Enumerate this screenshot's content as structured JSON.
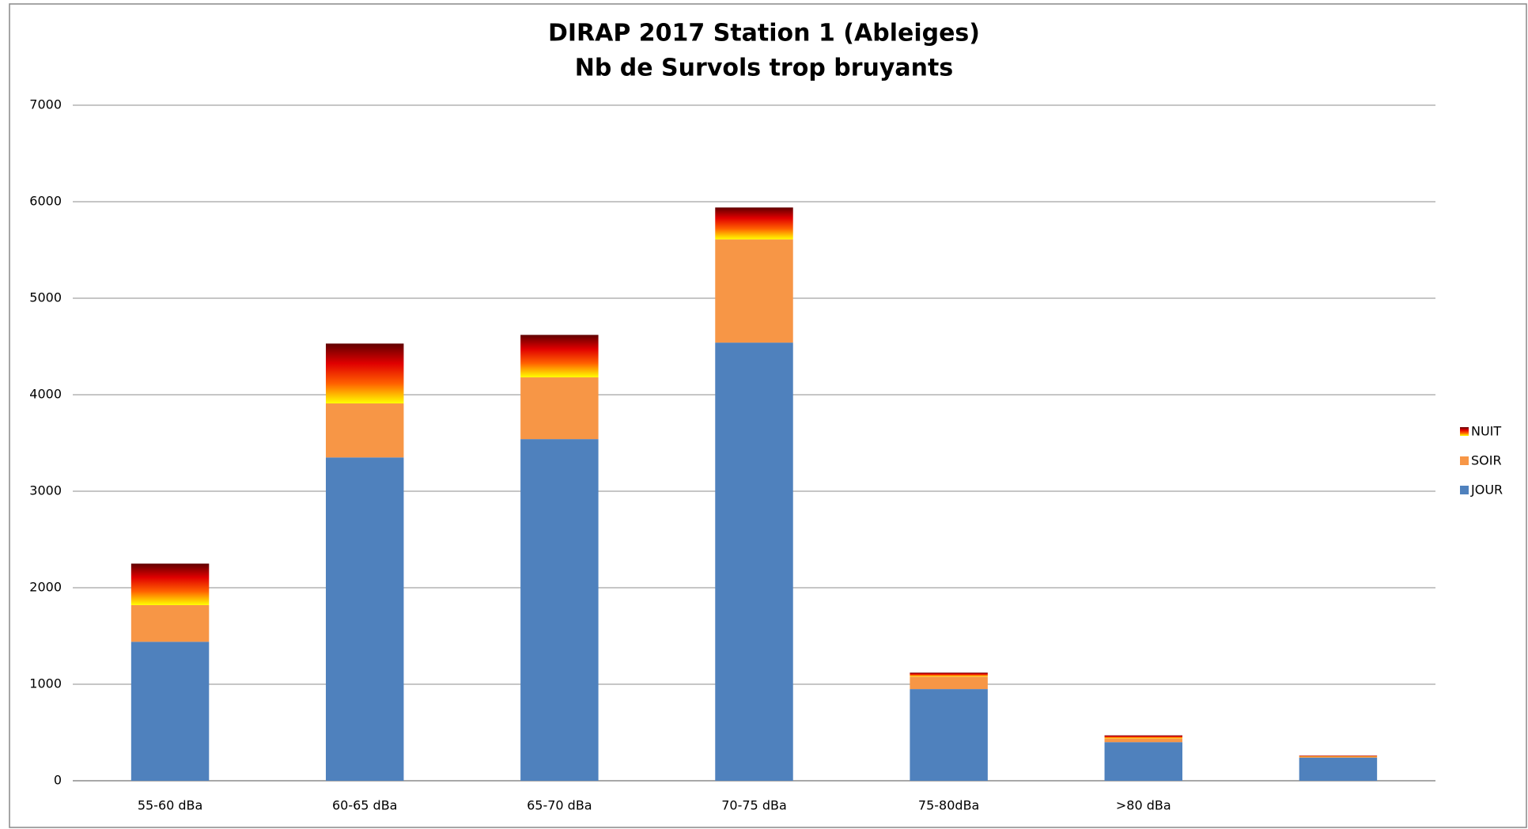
{
  "chart_data": {
    "type": "stacked_bar",
    "title": "DIRAP 2017 Station 1 (Ableiges)",
    "subtitle": "Nb de Survols trop bruyants",
    "categories": [
      "55-60 dBa",
      "60-65 dBa",
      "65-70 dBa",
      "70-75 dBa",
      "75-80dBa",
      ">80 dBa",
      null
    ],
    "series": [
      {
        "name": "JOUR",
        "color": "#4f81bd",
        "values": [
          1440,
          3350,
          3540,
          4540,
          950,
          400,
          240
        ]
      },
      {
        "name": "SOIR",
        "color": "#f79646",
        "values": [
          380,
          560,
          640,
          1070,
          130,
          40,
          10
        ]
      },
      {
        "name": "NUIT",
        "color": "#e00000",
        "gradient": [
          "#ffff00",
          "#ff6000",
          "#e00000",
          "#600000"
        ],
        "values": [
          430,
          620,
          440,
          330,
          40,
          30,
          10
        ]
      }
    ],
    "ylim": [
      0,
      7000
    ],
    "yticks": [
      0,
      1000,
      2000,
      3000,
      4000,
      5000,
      6000,
      7000
    ],
    "grid": true,
    "legend": "right"
  }
}
